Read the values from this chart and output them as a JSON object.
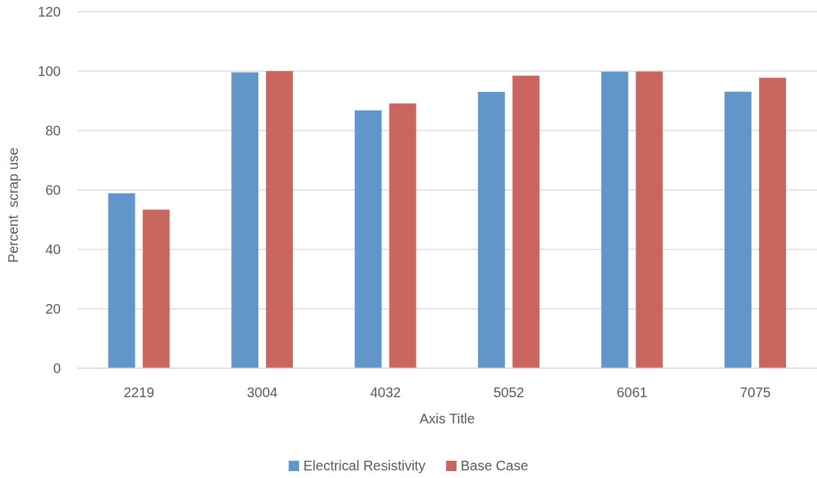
{
  "chart_data": {
    "type": "bar",
    "categories": [
      "2219",
      "3004",
      "4032",
      "5052",
      "6061",
      "7075"
    ],
    "series": [
      {
        "name": "Electrical Resistivity",
        "color": "#6096c9",
        "values": [
          58.9,
          99.6,
          86.8,
          93.0,
          99.8,
          93.1
        ]
      },
      {
        "name": "Base Case",
        "color": "#cb665e",
        "values": [
          53.4,
          100,
          89.1,
          98.5,
          99.9,
          97.8
        ]
      }
    ],
    "xlabel": "Axis Title",
    "ylabel": "Percent  scrap use",
    "ylim": [
      0,
      120
    ],
    "yticks": [
      0,
      20,
      40,
      60,
      80,
      100,
      120
    ],
    "grid": "y",
    "legend": "bottom"
  }
}
